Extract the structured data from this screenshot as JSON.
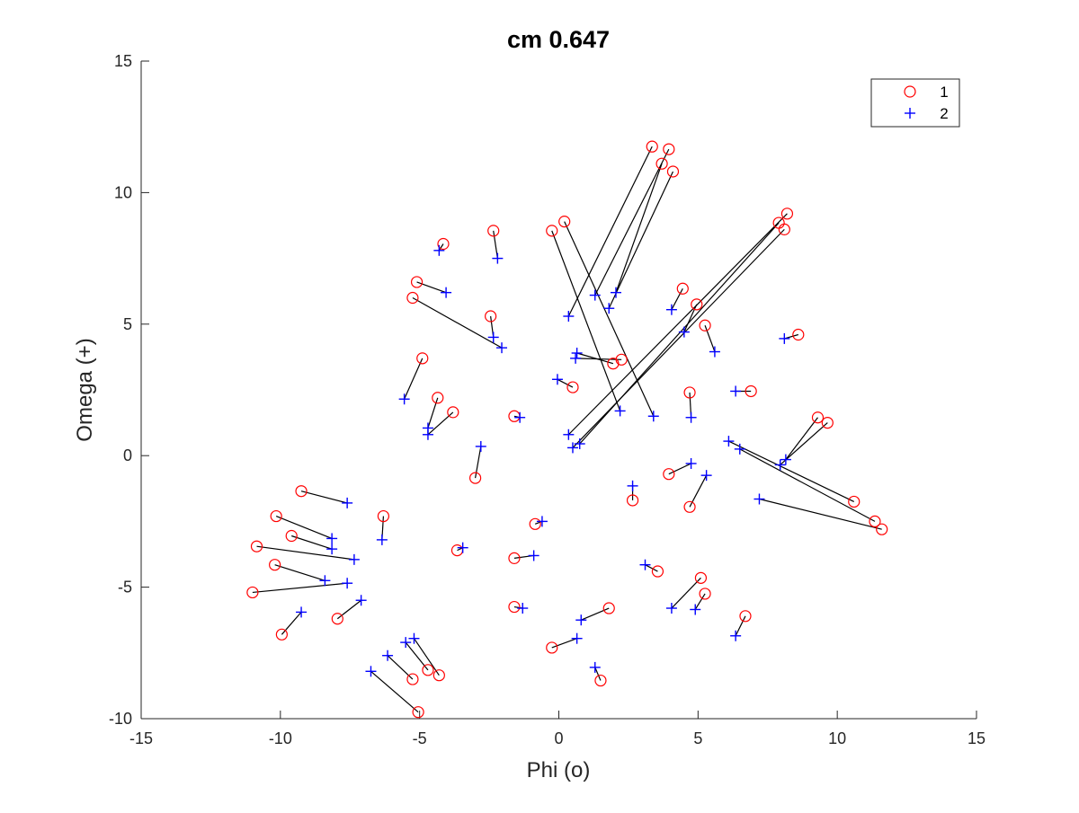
{
  "chart_data": {
    "type": "scatter",
    "title": "cm 0.647",
    "xlabel": "Phi (o)",
    "ylabel": "Omega (+)",
    "xlim": [
      -15,
      15
    ],
    "ylim": [
      -10,
      15
    ],
    "xticks": [
      -15,
      -10,
      -5,
      0,
      5,
      10,
      15
    ],
    "yticks": [
      -10,
      -5,
      0,
      5,
      10,
      15
    ],
    "grid": false,
    "legend_position": "top-right",
    "series": [
      {
        "name": "1",
        "marker": "circle",
        "color": "#ff0000"
      },
      {
        "name": "2",
        "marker": "plus",
        "color": "#0000ff"
      }
    ],
    "pairs": [
      {
        "p1": [
          3.35,
          11.75
        ],
        "p2": [
          0.35,
          5.3
        ]
      },
      {
        "p1": [
          3.95,
          11.65
        ],
        "p2": [
          1.3,
          6.1
        ]
      },
      {
        "p1": [
          3.7,
          11.1
        ],
        "p2": [
          2.05,
          6.2
        ]
      },
      {
        "p1": [
          4.1,
          10.8
        ],
        "p2": [
          1.8,
          5.6
        ]
      },
      {
        "p1": [
          0.2,
          8.9
        ],
        "p2": [
          3.4,
          1.5
        ]
      },
      {
        "p1": [
          -0.25,
          8.55
        ],
        "p2": [
          2.2,
          1.7
        ]
      },
      {
        "p1": [
          8.2,
          9.2
        ],
        "p2": [
          0.35,
          0.8
        ]
      },
      {
        "p1": [
          7.9,
          8.85
        ],
        "p2": [
          0.75,
          0.45
        ]
      },
      {
        "p1": [
          8.1,
          8.6
        ],
        "p2": [
          0.5,
          0.3
        ]
      },
      {
        "p1": [
          -4.15,
          8.05
        ],
        "p2": [
          -4.3,
          7.8
        ]
      },
      {
        "p1": [
          -2.35,
          8.55
        ],
        "p2": [
          -2.2,
          7.5
        ]
      },
      {
        "p1": [
          -5.1,
          6.6
        ],
        "p2": [
          -4.05,
          6.2
        ]
      },
      {
        "p1": [
          -5.25,
          6.0
        ],
        "p2": [
          -2.05,
          4.1
        ]
      },
      {
        "p1": [
          -2.45,
          5.3
        ],
        "p2": [
          -2.35,
          4.5
        ]
      },
      {
        "p1": [
          4.45,
          6.35
        ],
        "p2": [
          4.05,
          5.55
        ]
      },
      {
        "p1": [
          4.95,
          5.75
        ],
        "p2": [
          4.5,
          4.7
        ]
      },
      {
        "p1": [
          5.25,
          4.95
        ],
        "p2": [
          5.6,
          3.95
        ]
      },
      {
        "p1": [
          8.6,
          4.6
        ],
        "p2": [
          8.1,
          4.45
        ]
      },
      {
        "p1": [
          -4.9,
          3.7
        ],
        "p2": [
          -5.55,
          2.15
        ]
      },
      {
        "p1": [
          -4.35,
          2.2
        ],
        "p2": [
          -4.7,
          1.05
        ]
      },
      {
        "p1": [
          -3.8,
          1.65
        ],
        "p2": [
          -4.7,
          0.8
        ]
      },
      {
        "p1": [
          -1.6,
          1.5
        ],
        "p2": [
          -1.4,
          1.45
        ]
      },
      {
        "p1": [
          -3.0,
          -0.85
        ],
        "p2": [
          -2.8,
          0.35
        ]
      },
      {
        "p1": [
          1.95,
          3.5
        ],
        "p2": [
          0.65,
          3.9
        ]
      },
      {
        "p1": [
          2.25,
          3.65
        ],
        "p2": [
          0.6,
          3.7
        ]
      },
      {
        "p1": [
          0.5,
          2.6
        ],
        "p2": [
          -0.05,
          2.9
        ]
      },
      {
        "p1": [
          4.7,
          2.4
        ],
        "p2": [
          4.75,
          1.45
        ]
      },
      {
        "p1": [
          6.9,
          2.45
        ],
        "p2": [
          6.35,
          2.45
        ]
      },
      {
        "p1": [
          9.3,
          1.45
        ],
        "p2": [
          8.15,
          -0.15
        ]
      },
      {
        "p1": [
          9.65,
          1.25
        ],
        "p2": [
          7.95,
          -0.35
        ]
      },
      {
        "p1": [
          10.6,
          -1.75
        ],
        "p2": [
          6.1,
          0.55
        ]
      },
      {
        "p1": [
          11.35,
          -2.5
        ],
        "p2": [
          6.5,
          0.25
        ]
      },
      {
        "p1": [
          11.6,
          -2.8
        ],
        "p2": [
          7.2,
          -1.65
        ]
      },
      {
        "p1": [
          2.65,
          -1.7
        ],
        "p2": [
          2.65,
          -1.15
        ]
      },
      {
        "p1": [
          3.95,
          -0.7
        ],
        "p2": [
          4.75,
          -0.3
        ]
      },
      {
        "p1": [
          4.7,
          -1.95
        ],
        "p2": [
          5.3,
          -0.75
        ]
      },
      {
        "p1": [
          -0.85,
          -2.6
        ],
        "p2": [
          -0.6,
          -2.5
        ]
      },
      {
        "p1": [
          -3.65,
          -3.6
        ],
        "p2": [
          -3.45,
          -3.5
        ]
      },
      {
        "p1": [
          -1.6,
          -3.9
        ],
        "p2": [
          -0.9,
          -3.8
        ]
      },
      {
        "p1": [
          3.55,
          -4.4
        ],
        "p2": [
          3.1,
          -4.15
        ]
      },
      {
        "p1": [
          5.1,
          -4.65
        ],
        "p2": [
          4.05,
          -5.8
        ]
      },
      {
        "p1": [
          5.25,
          -5.25
        ],
        "p2": [
          4.9,
          -5.85
        ]
      },
      {
        "p1": [
          6.7,
          -6.1
        ],
        "p2": [
          6.35,
          -6.85
        ]
      },
      {
        "p1": [
          1.8,
          -5.8
        ],
        "p2": [
          0.8,
          -6.25
        ]
      },
      {
        "p1": [
          -1.6,
          -5.75
        ],
        "p2": [
          -1.3,
          -5.8
        ]
      },
      {
        "p1": [
          -0.25,
          -7.3
        ],
        "p2": [
          0.65,
          -6.95
        ]
      },
      {
        "p1": [
          1.5,
          -8.55
        ],
        "p2": [
          1.3,
          -8.05
        ]
      },
      {
        "p1": [
          -9.25,
          -1.35
        ],
        "p2": [
          -7.6,
          -1.8
        ]
      },
      {
        "p1": [
          -10.15,
          -2.3
        ],
        "p2": [
          -8.15,
          -3.15
        ]
      },
      {
        "p1": [
          -9.6,
          -3.05
        ],
        "p2": [
          -8.15,
          -3.55
        ]
      },
      {
        "p1": [
          -10.85,
          -3.45
        ],
        "p2": [
          -7.35,
          -3.95
        ]
      },
      {
        "p1": [
          -10.2,
          -4.15
        ],
        "p2": [
          -8.4,
          -4.75
        ]
      },
      {
        "p1": [
          -11.0,
          -5.2
        ],
        "p2": [
          -7.6,
          -4.85
        ]
      },
      {
        "p1": [
          -6.3,
          -2.3
        ],
        "p2": [
          -6.35,
          -3.2
        ]
      },
      {
        "p1": [
          -9.95,
          -6.8
        ],
        "p2": [
          -9.25,
          -5.95
        ]
      },
      {
        "p1": [
          -7.95,
          -6.2
        ],
        "p2": [
          -7.1,
          -5.5
        ]
      },
      {
        "p1": [
          -5.25,
          -8.5
        ],
        "p2": [
          -6.15,
          -7.6
        ]
      },
      {
        "p1": [
          -4.7,
          -8.15
        ],
        "p2": [
          -5.5,
          -7.1
        ]
      },
      {
        "p1": [
          -4.3,
          -8.35
        ],
        "p2": [
          -5.2,
          -6.95
        ]
      },
      {
        "p1": [
          -5.05,
          -9.75
        ],
        "p2": [
          -6.75,
          -8.2
        ]
      }
    ]
  }
}
